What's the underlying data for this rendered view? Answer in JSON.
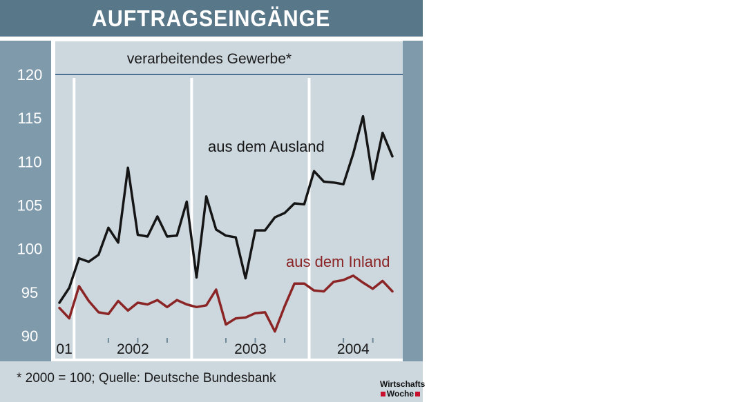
{
  "title": "AUFTRAGSEINGÄNGE",
  "footnote": "* 2000 = 100; Quelle: Deutsche Bundesbank",
  "logo": {
    "line1": "Wirtschafts",
    "line2": "Woche"
  },
  "colors": {
    "header": "#587789",
    "axis_panel": "#7f9aab",
    "plot_bg": "#ccd7de",
    "ausland": "#151515",
    "inland": "#8b2424",
    "ref_line": "#4a6f92"
  },
  "chart_data": {
    "type": "line",
    "title": "AUFTRAGSEINGÄNGE",
    "subtitle": "verarbeitendes Gewerbe*",
    "xlabel": "",
    "ylabel": "",
    "ylim": [
      90,
      120
    ],
    "yticks": [
      90,
      95,
      100,
      105,
      110,
      115,
      120
    ],
    "grid": false,
    "x_periods": [
      {
        "label": "01",
        "start": 0,
        "end": 1
      },
      {
        "label": "2002",
        "start": 2,
        "end": 13
      },
      {
        "label": "2003",
        "start": 14,
        "end": 25
      },
      {
        "label": "2004",
        "start": 26,
        "end": 34
      }
    ],
    "x": [
      "2001-11",
      "2001-12",
      "2002-01",
      "2002-02",
      "2002-03",
      "2002-04",
      "2002-05",
      "2002-06",
      "2002-07",
      "2002-08",
      "2002-09",
      "2002-10",
      "2002-11",
      "2002-12",
      "2003-01",
      "2003-02",
      "2003-03",
      "2003-04",
      "2003-05",
      "2003-06",
      "2003-07",
      "2003-08",
      "2003-09",
      "2003-10",
      "2003-11",
      "2003-12",
      "2004-01",
      "2004-02",
      "2004-03",
      "2004-04",
      "2004-05",
      "2004-06",
      "2004-07",
      "2004-08",
      "2004-09"
    ],
    "series": [
      {
        "name": "aus dem Ausland",
        "values": [
          93.8,
          95.5,
          98.9,
          98.5,
          99.3,
          102.4,
          100.7,
          109.3,
          101.6,
          101.4,
          103.7,
          101.4,
          101.5,
          105.4,
          96.7,
          106.0,
          102.2,
          101.5,
          101.3,
          96.6,
          102.1,
          102.1,
          103.6,
          104.1,
          105.2,
          105.1,
          108.9,
          107.7,
          107.6,
          107.4,
          110.9,
          115.2,
          108.0,
          113.3,
          110.6
        ]
      },
      {
        "name": "aus dem Inland",
        "values": [
          93.2,
          92.0,
          95.7,
          94.0,
          92.7,
          92.5,
          94.0,
          92.9,
          93.8,
          93.6,
          94.1,
          93.3,
          94.1,
          93.6,
          93.3,
          93.5,
          95.3,
          91.3,
          92.0,
          92.1,
          92.6,
          92.7,
          90.5,
          93.4,
          96.0,
          96.0,
          95.2,
          95.1,
          96.2,
          96.4,
          96.9,
          96.1,
          95.4,
          96.3,
          95.1
        ]
      }
    ],
    "annotations": [
      "aus dem Ausland",
      "aus dem Inland"
    ]
  }
}
